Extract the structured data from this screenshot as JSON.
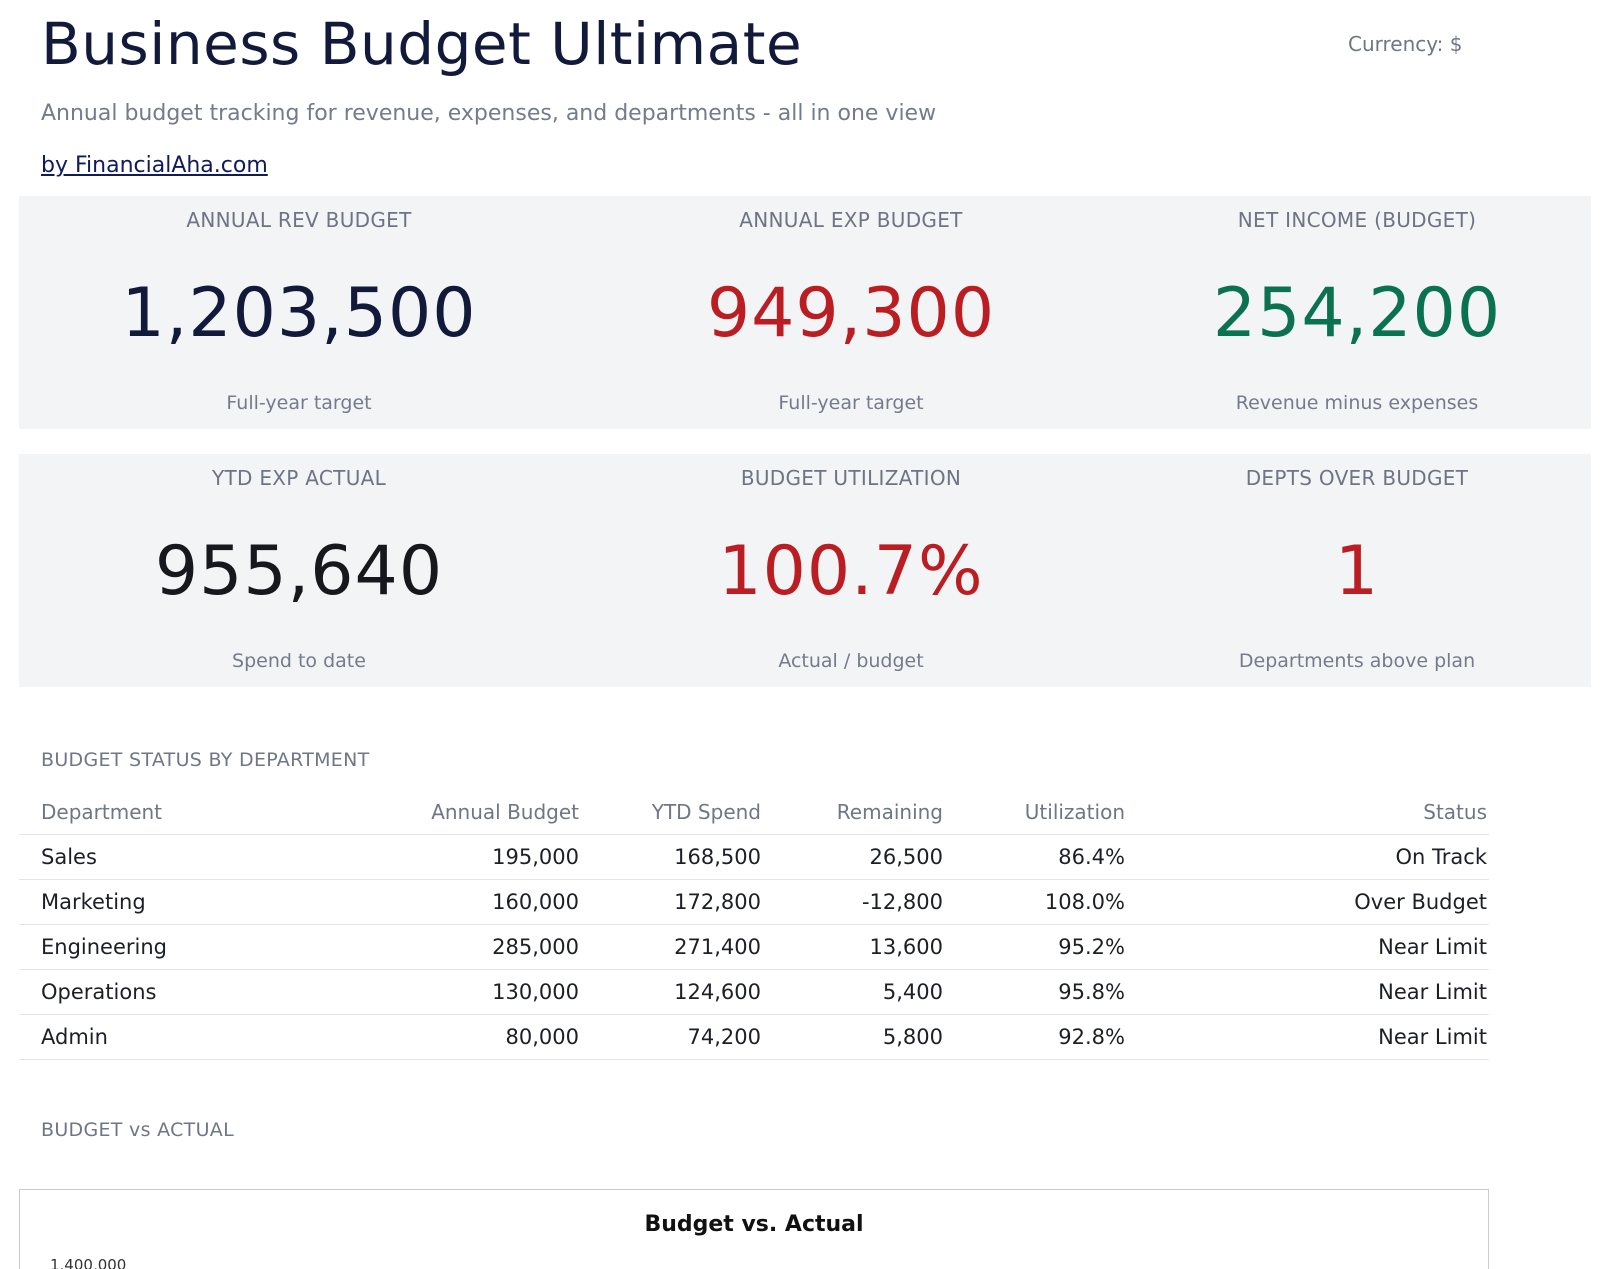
{
  "header": {
    "title": "Business Budget Ultimate",
    "currency": "Currency: $",
    "subtitle": "Annual budget tracking for revenue, expenses, and departments - all in one view",
    "byline": "by FinancialAha.com"
  },
  "kpis": [
    {
      "label": "ANNUAL REV BUDGET",
      "value": "1,203,500",
      "sub": "Full-year target",
      "color": "#111a3a"
    },
    {
      "label": "ANNUAL EXP BUDGET",
      "value": "949,300",
      "sub": "Full-year target",
      "color": "#bb1e22"
    },
    {
      "label": "NET INCOME (BUDGET)",
      "value": "254,200",
      "sub": "Revenue minus expenses",
      "color": "#0b7250"
    },
    {
      "label": "YTD EXP ACTUAL",
      "value": "955,640",
      "sub": "Spend to date",
      "color": "#16181e"
    },
    {
      "label": "BUDGET UTILIZATION",
      "value": "100.7%",
      "sub": "Actual / budget",
      "color": "#bb1e22"
    },
    {
      "label": "DEPTS OVER BUDGET",
      "value": "1",
      "sub": "Departments above plan",
      "color": "#bb1e22"
    }
  ],
  "dept_section": {
    "title": "BUDGET STATUS BY DEPARTMENT",
    "columns": [
      "Department",
      "Annual Budget",
      "YTD Spend",
      "Remaining",
      "Utilization",
      "Status"
    ],
    "rows": [
      [
        "Sales",
        "195,000",
        "168,500",
        "26,500",
        "86.4%",
        "On Track"
      ],
      [
        "Marketing",
        "160,000",
        "172,800",
        "-12,800",
        "108.0%",
        "Over Budget"
      ],
      [
        "Engineering",
        "285,000",
        "271,400",
        "13,600",
        "95.2%",
        "Near Limit"
      ],
      [
        "Operations",
        "130,000",
        "124,600",
        "5,400",
        "95.8%",
        "Near Limit"
      ],
      [
        "Admin",
        "80,000",
        "74,200",
        "5,800",
        "92.8%",
        "Near Limit"
      ]
    ]
  },
  "chart_section": {
    "title": "BUDGET vs ACTUAL",
    "chart_title": "Budget vs. Actual",
    "first_tick": "1,400,000"
  }
}
